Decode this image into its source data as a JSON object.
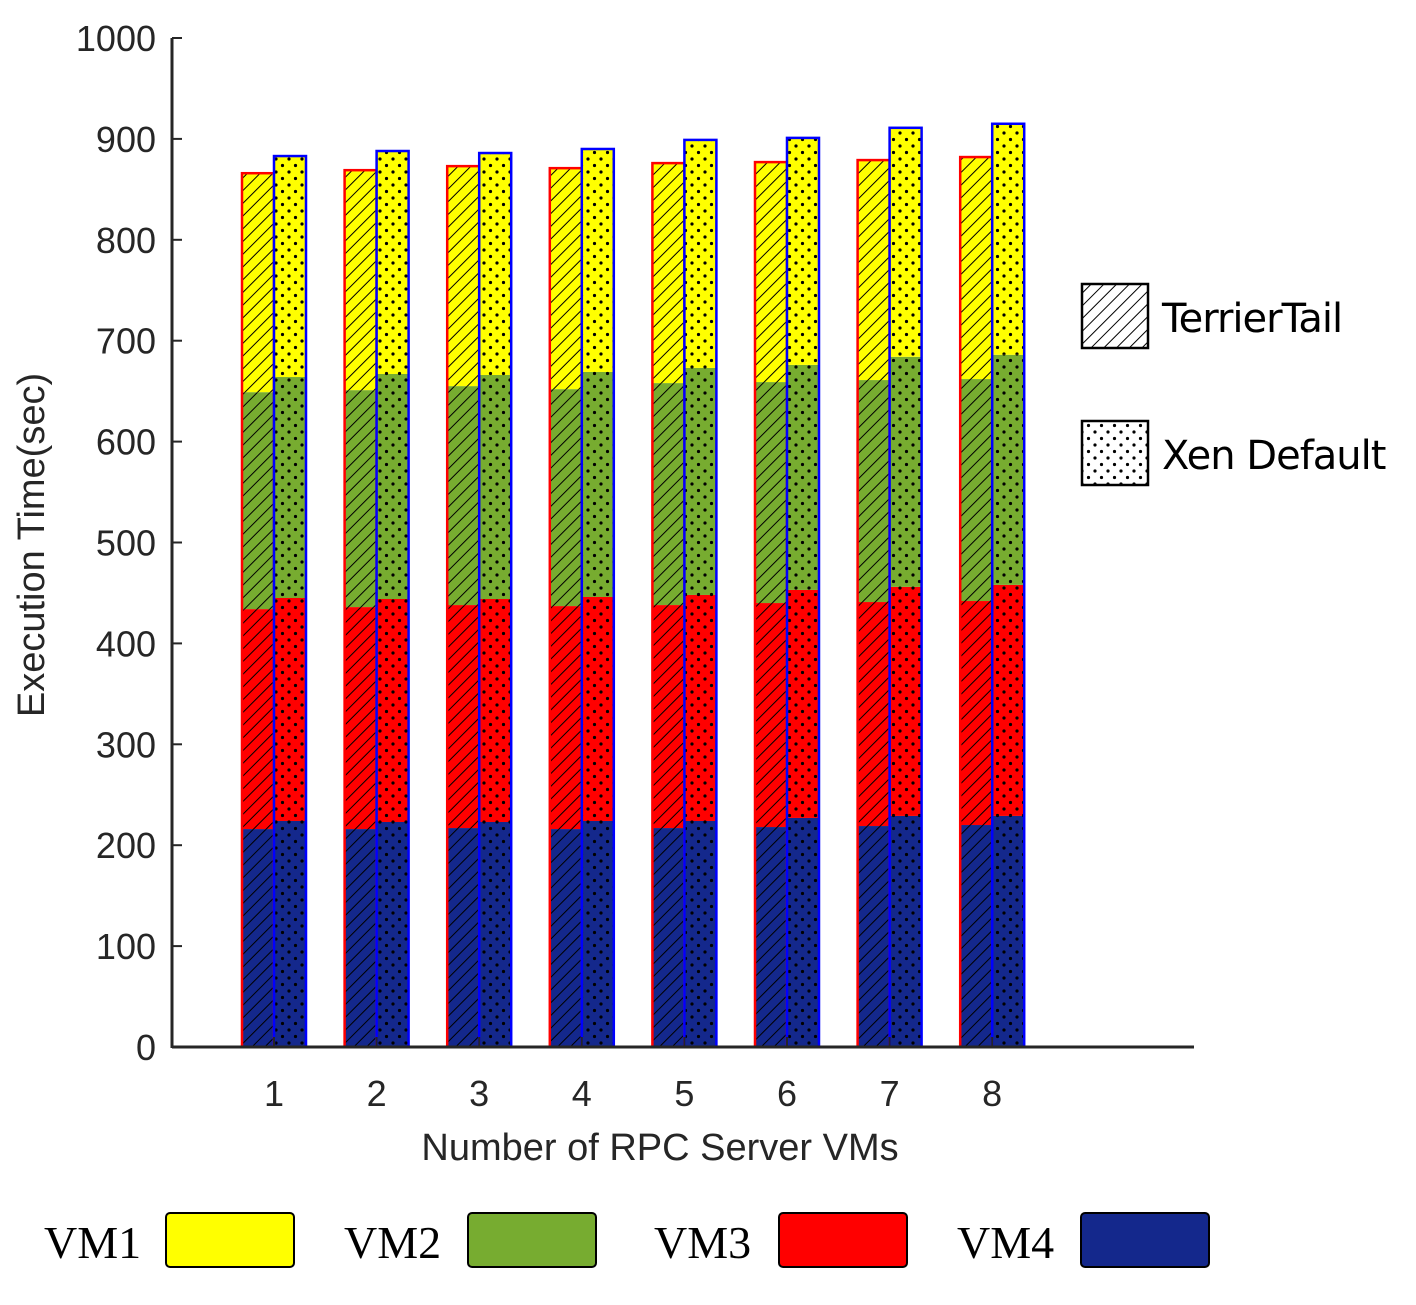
{
  "chart_data": {
    "type": "bar",
    "stacked": true,
    "grouped": true,
    "xlabel": "Number of RPC Server VMs",
    "ylabel": "Execution Time(sec)",
    "ylim": [
      0,
      1000
    ],
    "yticks": [
      0,
      100,
      200,
      300,
      400,
      500,
      600,
      700,
      800,
      900,
      1000
    ],
    "categories": [
      "1",
      "2",
      "3",
      "4",
      "5",
      "6",
      "7",
      "8"
    ],
    "grid": false,
    "groups": [
      {
        "name": "TerrierTail",
        "pattern": "hatch",
        "edge_color": "#ff0000",
        "stacks": {
          "VM4": [
            216,
            216,
            217,
            216,
            217,
            218,
            219,
            220
          ],
          "VM3": [
            218,
            220,
            221,
            221,
            221,
            222,
            222,
            222
          ],
          "VM2": [
            215,
            215,
            217,
            215,
            220,
            219,
            220,
            220
          ],
          "VM1": [
            217,
            218,
            218,
            219,
            218,
            218,
            218,
            220
          ]
        }
      },
      {
        "name": "Xen Default",
        "pattern": "dots",
        "edge_color": "#0000ff",
        "stacks": {
          "VM4": [
            224,
            223,
            223,
            224,
            224,
            227,
            229,
            229
          ],
          "VM3": [
            221,
            221,
            221,
            222,
            224,
            226,
            227,
            229
          ],
          "VM2": [
            219,
            223,
            222,
            223,
            225,
            223,
            228,
            228
          ],
          "VM1": [
            219,
            221,
            220,
            221,
            226,
            225,
            227,
            229
          ]
        }
      }
    ],
    "legend_patterns": [
      {
        "label": "TerrierTail",
        "pattern": "hatch"
      },
      {
        "label": "Xen Default",
        "pattern": "dots"
      }
    ],
    "legend_colors": [
      {
        "label": "VM1",
        "color": "#ffff00"
      },
      {
        "label": "VM2",
        "color": "#77ac30"
      },
      {
        "label": "VM3",
        "color": "#ff0000"
      },
      {
        "label": "VM4",
        "color": "#14288c"
      }
    ],
    "legend_placement": "right (patterns), bottom (colors)"
  }
}
